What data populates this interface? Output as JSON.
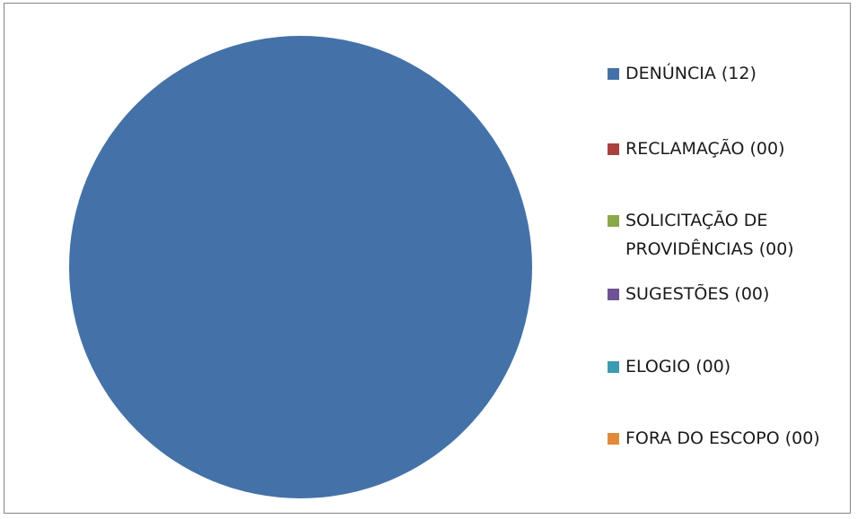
{
  "chart_data": {
    "type": "pie",
    "title": "",
    "categories": [
      "DENÚNCIA",
      "RECLAMAÇÃO",
      "SOLICITAÇÃO DE PROVIDÊNCIAS",
      "SUGESTÕES",
      "ELOGIO",
      "FORA DO ESCOPO"
    ],
    "values": [
      12,
      0,
      0,
      0,
      0,
      0
    ],
    "colors": [
      "#4472a8",
      "#a9413e",
      "#8aa94a",
      "#6e5495",
      "#3d9bb0",
      "#e08b3a"
    ],
    "legend_position": "right",
    "legend": [
      {
        "label": "DENÚNCIA (12)",
        "color": "#4472a8",
        "swatch": "square"
      },
      {
        "label": "RECLAMAÇÃO (00)",
        "color": "#a9413e",
        "swatch": "square"
      },
      {
        "label": "SOLICITAÇÃO DE\nPROVIDÊNCIAS (00)",
        "color": "#8aa94a",
        "swatch": "square"
      },
      {
        "label": "SUGESTÕES (00)",
        "color": "#6e5495",
        "swatch": "square"
      },
      {
        "label": "ELOGIO (00)",
        "color": "#3d9bb0",
        "swatch": "square"
      },
      {
        "label": "FORA DO ESCOPO (00)",
        "color": "#e08b3a",
        "swatch": "square"
      }
    ]
  }
}
